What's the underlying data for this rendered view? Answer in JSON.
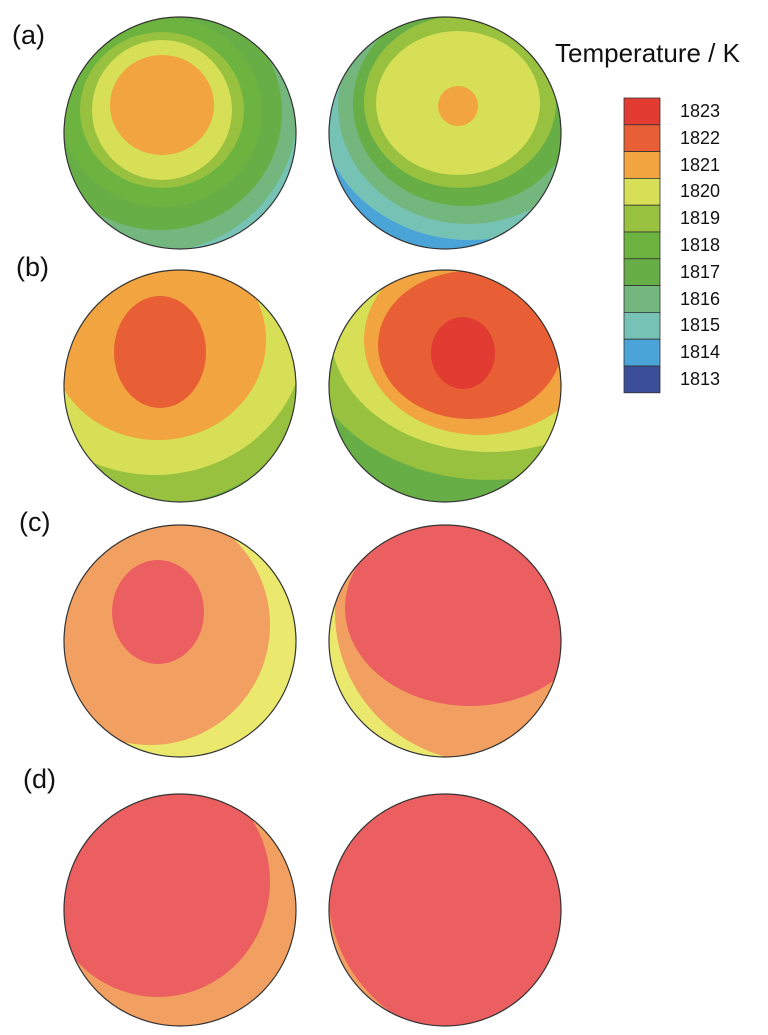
{
  "panels": {
    "a": {
      "label": "(a)"
    },
    "b": {
      "label": "(b)"
    },
    "c": {
      "label": "(c)"
    },
    "d": {
      "label": "(d)"
    }
  },
  "legend": {
    "title": "Temperature / K",
    "levels": [
      {
        "value": "1823",
        "color": "#e23b32"
      },
      {
        "value": "1822",
        "color": "#e85f36"
      },
      {
        "value": "1821",
        "color": "#f1a43f"
      },
      {
        "value": "1820",
        "color": "#d6df55"
      },
      {
        "value": "1819",
        "color": "#97c13f"
      },
      {
        "value": "1818",
        "color": "#6cb33f"
      },
      {
        "value": "1817",
        "color": "#68ae47"
      },
      {
        "value": "1816",
        "color": "#74b77e"
      },
      {
        "value": "1815",
        "color": "#76c3b5"
      },
      {
        "value": "1814",
        "color": "#4aa4d8"
      },
      {
        "value": "1813",
        "color": "#3b4f98"
      }
    ]
  },
  "colors": {
    "c_outer": "#f2a061",
    "c_inner": "#ec5f60",
    "c_edge": "#ebe86e",
    "outline": "#333333"
  }
}
